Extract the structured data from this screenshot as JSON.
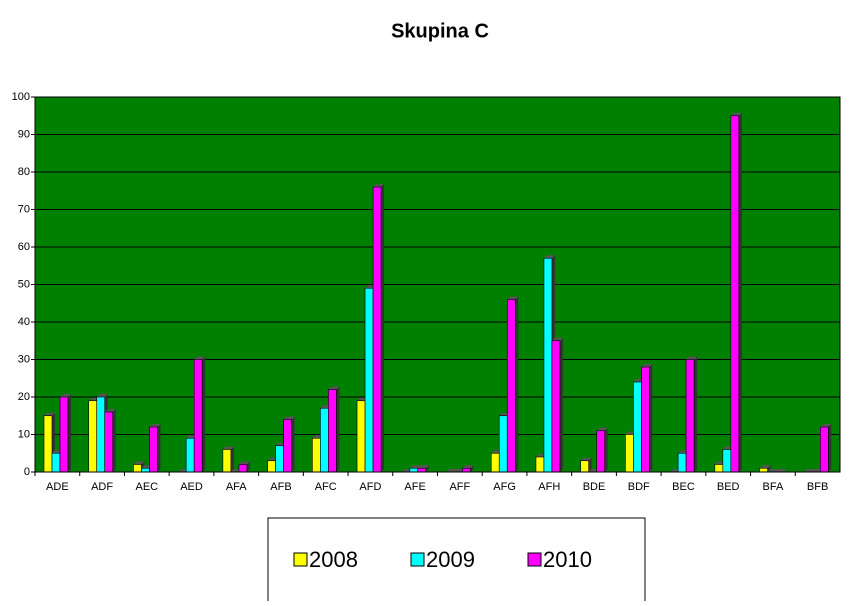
{
  "chart_data": {
    "type": "bar",
    "title": "Skupina C",
    "categories": [
      "ADE",
      "ADF",
      "AEC",
      "AED",
      "AFA",
      "AFB",
      "AFC",
      "AFD",
      "AFE",
      "AFF",
      "AFG",
      "AFH",
      "BDE",
      "BDF",
      "BEC",
      "BED",
      "BFA",
      "BFB"
    ],
    "series": [
      {
        "name": "2008",
        "color": "#ffff00",
        "values": [
          15,
          19,
          2,
          0,
          6,
          3,
          9,
          19,
          0,
          0,
          5,
          4,
          3,
          10,
          0,
          2,
          1,
          0
        ]
      },
      {
        "name": "2009",
        "color": "#00ffff",
        "values": [
          5,
          20,
          1,
          9,
          0,
          7,
          17,
          49,
          1,
          0,
          15,
          57,
          0,
          24,
          5,
          6,
          0,
          0
        ]
      },
      {
        "name": "2010",
        "color": "#ff00ff",
        "values": [
          20,
          16,
          12,
          30,
          2,
          14,
          22,
          76,
          1,
          1,
          46,
          35,
          11,
          28,
          30,
          95,
          0,
          12
        ]
      }
    ],
    "ylim": [
      0,
      100
    ],
    "yticks": [
      0,
      10,
      20,
      30,
      40,
      50,
      60,
      70,
      80,
      90,
      100
    ],
    "grid": true,
    "background": "#008000"
  }
}
